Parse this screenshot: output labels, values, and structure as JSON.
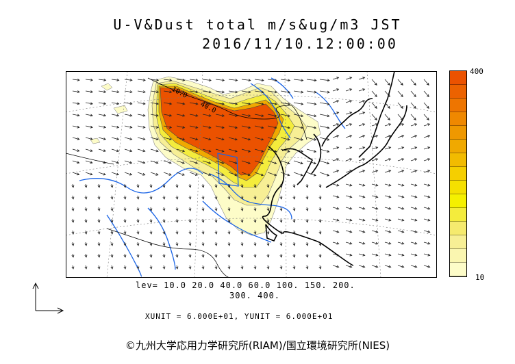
{
  "title": {
    "line1": "U-V&Dust total m/s&ug/m3 JST",
    "line2": "2016/11/10.12:00:00"
  },
  "colorbar": {
    "max_label": "400",
    "min_label": "10",
    "colors": [
      "#fdfcc8",
      "#faf6b0",
      "#f7ef95",
      "#f5ea6e",
      "#f4ec3c",
      "#f5f000",
      "#f5e000",
      "#f5cf00",
      "#f2bb00",
      "#f0a900",
      "#ef9800",
      "#ef8800",
      "#ee7500",
      "#ec6200",
      "#eb5200"
    ]
  },
  "contour_levels": {
    "line1": "lev= 10.0 20.0 40.0 60.0 100. 150. 200.",
    "line2": "300. 400."
  },
  "contour_labels": [
    "40.0",
    "10.0"
  ],
  "units": "XUNIT = 6.000E+01, YUNIT = 6.000E+01",
  "copyright": "©九州大学応用力学研究所(RIAM)/国立環境研究所(NIES)",
  "colors": {
    "dust_core": "#eb5200",
    "dust_mid": "#f0a900",
    "dust_light": "#f7ef95",
    "dust_faint": "#fdfcc8",
    "rivers": "#1a64e6",
    "coast": "#000000"
  },
  "icons": [
    "reference-vector-icon"
  ]
}
